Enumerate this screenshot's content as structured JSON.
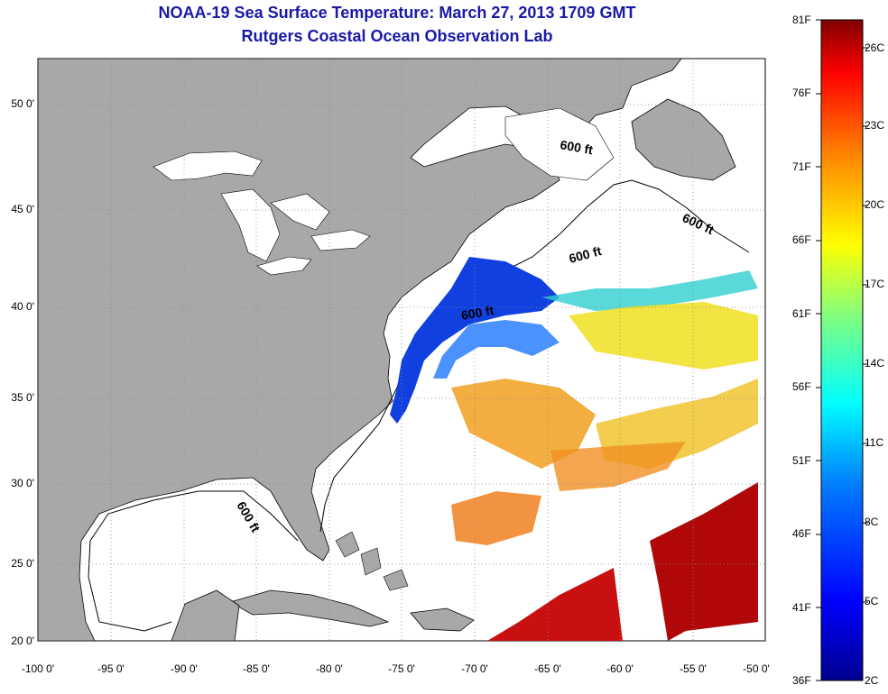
{
  "header": {
    "title": "NOAA-19 Sea Surface Temperature:  March 27, 2013 1709 GMT",
    "subtitle": "Rutgers Coastal Ocean Observation Lab"
  },
  "axes": {
    "latitude_labels": [
      "50 0'",
      "45 0'",
      "40 0'",
      "35 0'",
      "30 0'",
      "25 0'",
      "20 0'"
    ],
    "longitude_labels": [
      "-100 0'",
      "-95 0'",
      "-90 0'",
      "-85 0'",
      "-80 0'",
      "-75 0'",
      "-70 0'",
      "-65 0'",
      "-60 0'",
      "-55 0'",
      "-50 0'"
    ]
  },
  "contour_labels": [
    "600 ft",
    "600 ft",
    "600 ft",
    "600 ft",
    "600 ft"
  ],
  "colorbar": {
    "fahrenheit_labels": [
      "81F",
      "76F",
      "71F",
      "66F",
      "61F",
      "56F",
      "51F",
      "46F",
      "41F",
      "36F"
    ],
    "celsius_labels": [
      "26C",
      "23C",
      "20C",
      "17C",
      "14C",
      "11C",
      "8C",
      "5C",
      "2C"
    ],
    "colors": [
      "#00008f",
      "#0000ff",
      "#0080ff",
      "#00ffff",
      "#80ff80",
      "#ffff00",
      "#ff8000",
      "#ff0000",
      "#800000"
    ]
  },
  "colors": {
    "land": "#a8a8a8",
    "ocean": "#ffffff",
    "title": "#1a1aa8"
  }
}
